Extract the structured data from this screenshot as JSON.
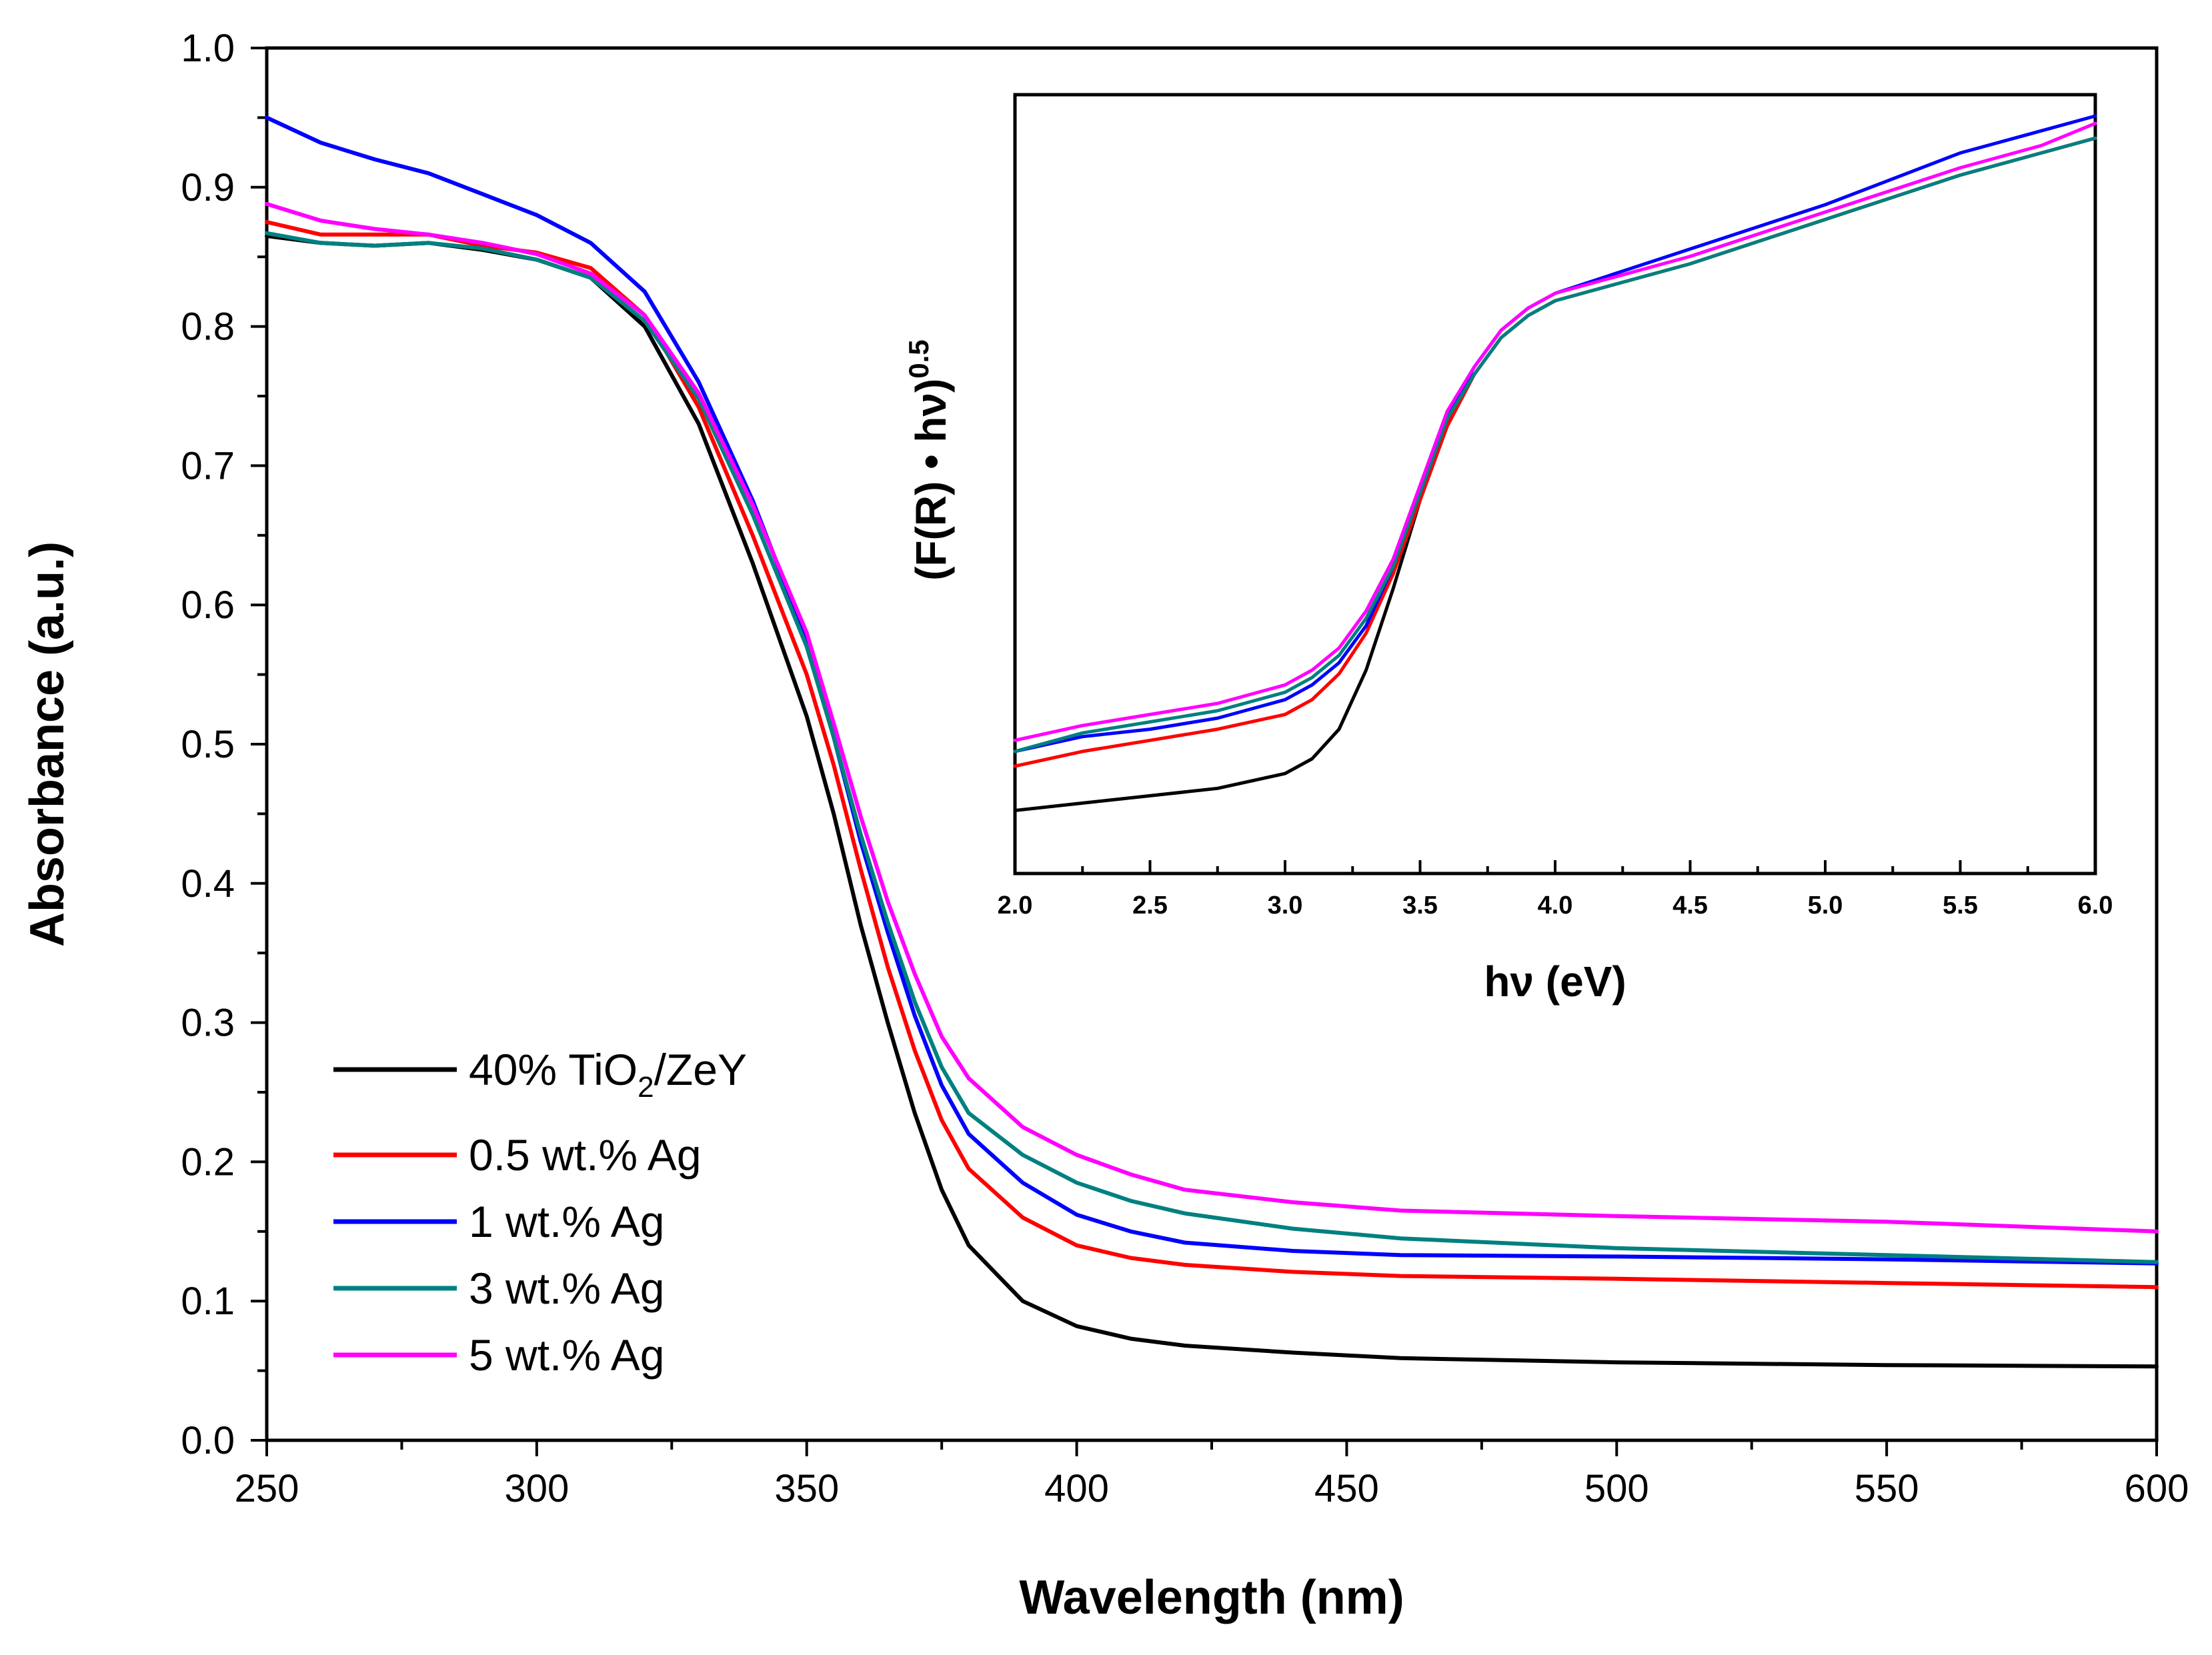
{
  "chart_data": [
    {
      "type": "line",
      "xlabel": "Wavelength (nm)",
      "ylabel": "Absorbance (a.u.)",
      "xlim": [
        250,
        600
      ],
      "ylim": [
        0.0,
        1.0
      ],
      "xticks": [
        "250",
        "300",
        "350",
        "400",
        "450",
        "500",
        "550",
        "600"
      ],
      "yticks": [
        "0.0",
        "0.1",
        "0.2",
        "0.3",
        "0.4",
        "0.5",
        "0.6",
        "0.7",
        "0.8",
        "0.9",
        "1.0"
      ],
      "legend_position": "bottom-left",
      "x": [
        250,
        260,
        270,
        280,
        290,
        300,
        310,
        320,
        330,
        340,
        350,
        355,
        360,
        365,
        370,
        375,
        380,
        390,
        400,
        410,
        420,
        440,
        460,
        500,
        550,
        600
      ],
      "series": [
        {
          "name": "40% TiO2/ZeY",
          "legend_main": "40% TiO",
          "legend_sub": "2",
          "legend_tail": "/ZeY",
          "color": "#000000",
          "values": [
            0.865,
            0.86,
            0.858,
            0.86,
            0.855,
            0.848,
            0.835,
            0.8,
            0.73,
            0.63,
            0.52,
            0.45,
            0.37,
            0.3,
            0.235,
            0.18,
            0.14,
            0.1,
            0.082,
            0.073,
            0.068,
            0.063,
            0.059,
            0.056,
            0.054,
            0.053
          ]
        },
        {
          "name": "0.5 wt.% Ag",
          "color": "#ff0000",
          "values": [
            0.875,
            0.866,
            0.866,
            0.866,
            0.858,
            0.853,
            0.842,
            0.808,
            0.742,
            0.65,
            0.55,
            0.485,
            0.41,
            0.34,
            0.28,
            0.23,
            0.195,
            0.16,
            0.14,
            0.131,
            0.126,
            0.121,
            0.118,
            0.116,
            0.113,
            0.11
          ]
        },
        {
          "name": "1 wt.% Ag",
          "color": "#0000ff",
          "values": [
            0.95,
            0.932,
            0.92,
            0.91,
            0.895,
            0.88,
            0.86,
            0.825,
            0.76,
            0.675,
            0.575,
            0.505,
            0.43,
            0.365,
            0.305,
            0.255,
            0.22,
            0.185,
            0.162,
            0.15,
            0.142,
            0.136,
            0.133,
            0.132,
            0.13,
            0.127
          ]
        },
        {
          "name": "3 wt.% Ag",
          "color": "#008080",
          "values": [
            0.867,
            0.86,
            0.858,
            0.86,
            0.856,
            0.848,
            0.835,
            0.804,
            0.748,
            0.665,
            0.57,
            0.505,
            0.435,
            0.372,
            0.315,
            0.268,
            0.235,
            0.205,
            0.185,
            0.172,
            0.163,
            0.152,
            0.145,
            0.138,
            0.133,
            0.128
          ]
        },
        {
          "name": "5 wt.% Ag",
          "color": "#ff00ff",
          "values": [
            0.888,
            0.876,
            0.87,
            0.866,
            0.86,
            0.852,
            0.838,
            0.808,
            0.752,
            0.672,
            0.58,
            0.515,
            0.448,
            0.387,
            0.335,
            0.29,
            0.26,
            0.225,
            0.205,
            0.191,
            0.18,
            0.171,
            0.165,
            0.161,
            0.157,
            0.15
          ]
        }
      ]
    },
    {
      "type": "line",
      "role": "inset",
      "xlabel": "hν (eV)",
      "ylabel_main": "(F(R) • hν)",
      "ylabel_sup": "0.5",
      "xlim": [
        2.0,
        6.0
      ],
      "ylim": [
        0.0,
        1.0
      ],
      "xticks": [
        "2.0",
        "2.5",
        "3.0",
        "3.5",
        "4.0",
        "4.5",
        "5.0",
        "5.5",
        "6.0"
      ],
      "x": [
        2.0,
        2.25,
        2.5,
        2.75,
        3.0,
        3.1,
        3.2,
        3.3,
        3.4,
        3.5,
        3.6,
        3.7,
        3.8,
        3.9,
        4.0,
        4.5,
        5.0,
        5.5,
        5.8,
        6.0
      ],
      "series": [
        {
          "name": "40% TiO2/ZeY",
          "color": "#000000",
          "values": [
            0.06,
            0.07,
            0.08,
            0.09,
            0.11,
            0.13,
            0.17,
            0.25,
            0.36,
            0.48,
            0.58,
            0.65,
            0.7,
            0.73,
            0.75,
            0.8,
            0.86,
            0.92,
            0.95,
            0.97
          ]
        },
        {
          "name": "0.5 wt.% Ag",
          "color": "#ff0000",
          "values": [
            0.12,
            0.14,
            0.155,
            0.17,
            0.19,
            0.21,
            0.245,
            0.3,
            0.38,
            0.48,
            0.58,
            0.65,
            0.7,
            0.73,
            0.75,
            0.8,
            0.86,
            0.92,
            0.95,
            0.97
          ]
        },
        {
          "name": "1 wt.% Ag",
          "color": "#0000ff",
          "values": [
            0.14,
            0.16,
            0.17,
            0.185,
            0.21,
            0.23,
            0.26,
            0.31,
            0.39,
            0.49,
            0.59,
            0.66,
            0.71,
            0.74,
            0.76,
            0.82,
            0.88,
            0.95,
            0.98,
            1.0
          ]
        },
        {
          "name": "3 wt.% Ag",
          "color": "#008080",
          "values": [
            0.14,
            0.165,
            0.18,
            0.195,
            0.22,
            0.24,
            0.27,
            0.32,
            0.39,
            0.49,
            0.59,
            0.65,
            0.7,
            0.73,
            0.75,
            0.8,
            0.86,
            0.92,
            0.95,
            0.97
          ]
        },
        {
          "name": "5 wt.% Ag",
          "color": "#ff00ff",
          "values": [
            0.155,
            0.175,
            0.19,
            0.205,
            0.23,
            0.25,
            0.28,
            0.33,
            0.4,
            0.5,
            0.6,
            0.66,
            0.71,
            0.74,
            0.76,
            0.81,
            0.87,
            0.93,
            0.96,
            0.99
          ]
        }
      ]
    }
  ]
}
